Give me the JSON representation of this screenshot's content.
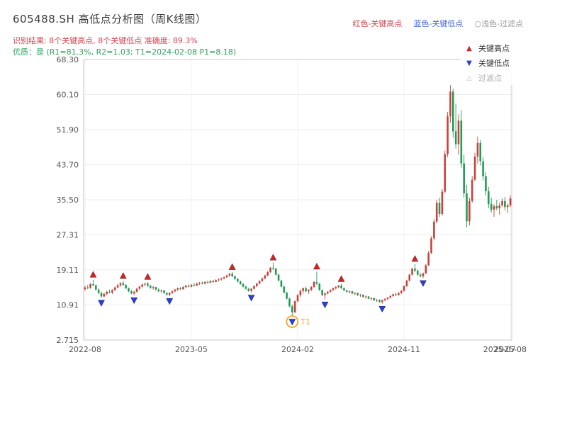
{
  "header": {
    "title": "605488.SH 高低点分析图（周K线图）",
    "color_key": {
      "high": "红色-关键高点",
      "low": "蓝色-关键低点",
      "filter": "○浅色-过滤点"
    },
    "result_line": "识别结果: 8个关键高点, 8个关键低点   准确度: 89.3%",
    "quality_line": "优质：是 (R1=81.3%, R2=1.03; T1=2024-02-08 P1=8.18)",
    "stats": {
      "key_high_count": 8,
      "key_low_count": 8,
      "accuracy": "89.3%",
      "R1": "81.3%",
      "R2": "1.03",
      "T1_date": "2024-02-08",
      "P1": "8.18"
    }
  },
  "colors": {
    "title": "#3d3d3d",
    "result_line": "#d6454f",
    "quality_line": "#2aa35c",
    "key_high_text": "#d6454f",
    "key_low_text": "#4a66d8",
    "key_filter_text": "#9a9a9a"
  },
  "legend_box": {
    "items": [
      {
        "label": "关键高点",
        "glyph": "▲",
        "color": "#c62828",
        "text_color": "#333333"
      },
      {
        "label": "关键低点",
        "glyph": "▼",
        "color": "#2b3fd4",
        "text_color": "#333333"
      },
      {
        "label": "过滤点",
        "glyph": "△",
        "color": "#bbbbbb",
        "text_color": "#aaaaaa"
      }
    ]
  },
  "chart_data": {
    "type": "candlestick",
    "title": "605488.SH 高低点分析图（周K线图）",
    "ylim": [
      2.715,
      68.3
    ],
    "y_ticks": [
      "68.30",
      "60.10",
      "51.90",
      "43.70",
      "35.50",
      "27.31",
      "19.11",
      "10.91",
      "2.715"
    ],
    "y_tick_values": [
      68.3,
      60.1,
      51.9,
      43.7,
      35.5,
      27.31,
      19.11,
      10.91,
      2.715
    ],
    "x_ticks": [
      {
        "week": 0,
        "label": "2022-08",
        "grid": true
      },
      {
        "week": 39,
        "label": "2023-05",
        "grid": true
      },
      {
        "week": 78,
        "label": "2024-02",
        "grid": true
      },
      {
        "week": 117,
        "label": "2024-11",
        "grid": true
      },
      {
        "week": 152,
        "label": "2025-07",
        "grid": false
      },
      {
        "week": 156,
        "label": "2025-08",
        "grid": true
      }
    ],
    "up_color": "#c8423a",
    "down_color": "#239a58",
    "marker_high_color": "#c62828",
    "marker_low_color": "#2b3fd4",
    "candles": [
      [
        14.6,
        15.4,
        14.2,
        15.0
      ],
      [
        15.0,
        15.6,
        14.6,
        14.9
      ],
      [
        14.9,
        16.0,
        14.7,
        15.8
      ],
      [
        15.8,
        16.8,
        15.3,
        15.5
      ],
      [
        15.5,
        15.7,
        14.3,
        14.5
      ],
      [
        14.5,
        14.8,
        13.4,
        13.7
      ],
      [
        13.7,
        14.0,
        12.6,
        12.9
      ],
      [
        12.9,
        13.8,
        12.7,
        13.5
      ],
      [
        13.5,
        14.2,
        13.2,
        14.0
      ],
      [
        14.0,
        14.5,
        13.6,
        13.8
      ],
      [
        13.8,
        14.6,
        13.5,
        14.4
      ],
      [
        14.4,
        15.2,
        14.2,
        15.0
      ],
      [
        15.0,
        15.8,
        14.8,
        15.5
      ],
      [
        15.5,
        16.2,
        15.2,
        16.0
      ],
      [
        16.0,
        16.5,
        15.4,
        15.6
      ],
      [
        15.6,
        15.8,
        14.6,
        14.8
      ],
      [
        14.8,
        15.0,
        13.9,
        14.1
      ],
      [
        14.1,
        14.4,
        13.4,
        13.6
      ],
      [
        13.6,
        14.2,
        13.2,
        14.0
      ],
      [
        14.0,
        14.9,
        13.8,
        14.7
      ],
      [
        14.7,
        15.4,
        14.5,
        15.2
      ],
      [
        15.2,
        15.9,
        15.0,
        15.7
      ],
      [
        15.7,
        16.1,
        15.3,
        15.9
      ],
      [
        15.9,
        16.3,
        15.1,
        15.4
      ],
      [
        15.4,
        15.6,
        14.7,
        14.9
      ],
      [
        14.9,
        15.3,
        14.5,
        15.1
      ],
      [
        15.1,
        15.2,
        14.3,
        14.5
      ],
      [
        14.5,
        14.8,
        13.9,
        14.1
      ],
      [
        14.1,
        14.5,
        13.7,
        14.3
      ],
      [
        14.3,
        14.4,
        13.5,
        13.7
      ],
      [
        13.7,
        13.9,
        13.1,
        13.3
      ],
      [
        13.3,
        13.9,
        13.0,
        13.7
      ],
      [
        13.7,
        14.3,
        13.5,
        14.1
      ],
      [
        14.1,
        14.7,
        13.9,
        14.5
      ],
      [
        14.5,
        15.0,
        14.2,
        14.8
      ],
      [
        14.8,
        15.1,
        14.4,
        14.6
      ],
      [
        14.6,
        15.3,
        14.5,
        15.1
      ],
      [
        15.1,
        15.6,
        14.8,
        15.4
      ],
      [
        15.4,
        15.7,
        15.0,
        15.2
      ],
      [
        15.2,
        15.8,
        15.0,
        15.6
      ],
      [
        15.6,
        16.0,
        15.2,
        15.4
      ],
      [
        15.4,
        16.1,
        15.3,
        15.9
      ],
      [
        15.9,
        16.3,
        15.6,
        16.1
      ],
      [
        16.1,
        16.4,
        15.7,
        15.9
      ],
      [
        15.9,
        16.5,
        15.7,
        16.3
      ],
      [
        16.3,
        16.6,
        15.9,
        16.1
      ],
      [
        16.1,
        16.7,
        16.0,
        16.5
      ],
      [
        16.5,
        16.8,
        16.1,
        16.3
      ],
      [
        16.3,
        16.9,
        16.2,
        16.7
      ],
      [
        16.7,
        17.1,
        16.4,
        16.9
      ],
      [
        16.9,
        17.3,
        16.6,
        17.1
      ],
      [
        17.1,
        17.6,
        16.9,
        17.4
      ],
      [
        17.4,
        18.0,
        17.2,
        17.8
      ],
      [
        17.8,
        18.4,
        17.5,
        18.2
      ],
      [
        18.2,
        18.6,
        17.4,
        17.6
      ],
      [
        17.6,
        17.8,
        16.8,
        17.0
      ],
      [
        17.0,
        17.2,
        16.2,
        16.4
      ],
      [
        16.4,
        16.6,
        15.6,
        15.8
      ],
      [
        15.8,
        16.0,
        15.0,
        15.2
      ],
      [
        15.2,
        15.4,
        14.5,
        14.7
      ],
      [
        14.7,
        14.9,
        14.0,
        14.2
      ],
      [
        14.2,
        14.9,
        13.8,
        14.7
      ],
      [
        14.7,
        15.5,
        14.5,
        15.3
      ],
      [
        15.3,
        16.1,
        15.1,
        15.9
      ],
      [
        15.9,
        16.7,
        15.7,
        16.5
      ],
      [
        16.5,
        17.3,
        16.3,
        17.1
      ],
      [
        17.1,
        18.0,
        16.9,
        17.8
      ],
      [
        17.8,
        18.8,
        17.6,
        18.6
      ],
      [
        18.6,
        19.8,
        18.4,
        19.6
      ],
      [
        19.6,
        20.8,
        19.0,
        19.4
      ],
      [
        19.4,
        19.6,
        17.8,
        18.0
      ],
      [
        18.0,
        18.2,
        16.4,
        16.6
      ],
      [
        16.6,
        16.8,
        15.0,
        15.2
      ],
      [
        15.2,
        15.4,
        13.6,
        13.8
      ],
      [
        13.8,
        14.0,
        12.2,
        12.4
      ],
      [
        12.4,
        12.6,
        10.4,
        10.6
      ],
      [
        10.6,
        11.0,
        8.18,
        9.2
      ],
      [
        9.2,
        12.0,
        9.0,
        11.8
      ],
      [
        11.8,
        13.5,
        11.5,
        13.2
      ],
      [
        13.2,
        14.5,
        12.8,
        14.2
      ],
      [
        14.2,
        15.0,
        13.6,
        14.8
      ],
      [
        14.8,
        15.2,
        13.9,
        14.1
      ],
      [
        14.1,
        14.6,
        13.5,
        14.4
      ],
      [
        14.4,
        15.3,
        14.2,
        15.1
      ],
      [
        15.1,
        16.5,
        14.9,
        16.3
      ],
      [
        16.3,
        18.7,
        15.5,
        15.9
      ],
      [
        15.9,
        16.0,
        14.2,
        14.4
      ],
      [
        14.4,
        14.5,
        13.0,
        13.2
      ],
      [
        13.2,
        13.8,
        12.2,
        13.6
      ],
      [
        13.6,
        14.2,
        13.4,
        14.0
      ],
      [
        14.0,
        14.6,
        13.8,
        14.4
      ],
      [
        14.4,
        15.0,
        14.2,
        14.8
      ],
      [
        14.8,
        15.3,
        14.5,
        15.1
      ],
      [
        15.1,
        15.6,
        14.8,
        15.4
      ],
      [
        15.4,
        15.8,
        14.6,
        14.8
      ],
      [
        14.8,
        15.0,
        14.1,
        14.3
      ],
      [
        14.3,
        14.5,
        13.8,
        14.0
      ],
      [
        14.0,
        14.3,
        13.6,
        14.1
      ],
      [
        14.1,
        14.2,
        13.4,
        13.6
      ],
      [
        13.6,
        13.9,
        13.2,
        13.7
      ],
      [
        13.7,
        13.8,
        13.0,
        13.2
      ],
      [
        13.2,
        13.5,
        12.8,
        13.3
      ],
      [
        13.3,
        13.4,
        12.6,
        12.8
      ],
      [
        12.8,
        13.1,
        12.4,
        12.9
      ],
      [
        12.9,
        13.0,
        12.2,
        12.4
      ],
      [
        12.4,
        12.7,
        12.0,
        12.5
      ],
      [
        12.5,
        12.6,
        11.8,
        12.0
      ],
      [
        12.0,
        12.3,
        11.6,
        12.1
      ],
      [
        12.1,
        12.2,
        11.4,
        11.6
      ],
      [
        11.6,
        12.2,
        11.2,
        12.0
      ],
      [
        12.0,
        12.5,
        11.8,
        12.3
      ],
      [
        12.3,
        12.8,
        12.1,
        12.6
      ],
      [
        12.6,
        13.2,
        12.4,
        13.0
      ],
      [
        13.0,
        13.6,
        12.8,
        13.4
      ],
      [
        13.4,
        13.8,
        13.0,
        13.2
      ],
      [
        13.2,
        13.9,
        13.1,
        13.7
      ],
      [
        13.7,
        14.4,
        13.5,
        14.2
      ],
      [
        14.2,
        15.5,
        14.0,
        15.3
      ],
      [
        15.3,
        16.8,
        15.1,
        16.6
      ],
      [
        16.6,
        18.2,
        16.4,
        18.0
      ],
      [
        18.0,
        19.6,
        17.8,
        19.4
      ],
      [
        19.4,
        20.5,
        18.6,
        18.9
      ],
      [
        18.9,
        19.2,
        17.8,
        18.0
      ],
      [
        18.0,
        18.4,
        17.4,
        17.6
      ],
      [
        17.6,
        18.5,
        17.2,
        18.3
      ],
      [
        18.3,
        20.5,
        18.1,
        20.2
      ],
      [
        20.2,
        23.5,
        20.0,
        23.1
      ],
      [
        23.1,
        27.0,
        22.8,
        26.5
      ],
      [
        26.5,
        31.0,
        26.0,
        30.4
      ],
      [
        30.4,
        35.5,
        30.0,
        34.8
      ],
      [
        34.8,
        36.0,
        31.5,
        32.2
      ],
      [
        32.2,
        38.0,
        31.8,
        37.4
      ],
      [
        37.4,
        47.0,
        37.0,
        46.2
      ],
      [
        46.2,
        56.0,
        45.5,
        55.0
      ],
      [
        55.0,
        62.3,
        53.5,
        60.8
      ],
      [
        60.8,
        61.5,
        50.0,
        51.5
      ],
      [
        51.5,
        58.0,
        47.5,
        48.5
      ],
      [
        48.5,
        55.5,
        46.0,
        54.0
      ],
      [
        54.0,
        56.5,
        43.0,
        44.0
      ],
      [
        44.0,
        46.0,
        36.0,
        37.0
      ],
      [
        37.0,
        39.0,
        29.0,
        30.5
      ],
      [
        30.5,
        36.0,
        29.5,
        35.2
      ],
      [
        35.2,
        41.0,
        34.8,
        40.2
      ],
      [
        40.2,
        46.5,
        39.8,
        45.6
      ],
      [
        45.6,
        50.3,
        44.0,
        48.8
      ],
      [
        48.8,
        49.5,
        43.5,
        44.5
      ],
      [
        44.5,
        45.5,
        40.0,
        41.0
      ],
      [
        41.0,
        42.0,
        36.5,
        37.5
      ],
      [
        37.5,
        38.5,
        33.5,
        34.5
      ],
      [
        34.5,
        36.0,
        32.5,
        33.2
      ],
      [
        33.2,
        34.5,
        31.5,
        34.0
      ],
      [
        34.0,
        35.5,
        33.0,
        33.5
      ],
      [
        33.5,
        34.8,
        32.0,
        34.2
      ],
      [
        34.2,
        35.8,
        33.8,
        35.2
      ],
      [
        35.2,
        36.2,
        33.0,
        33.8
      ],
      [
        33.8,
        34.6,
        32.4,
        34.2
      ],
      [
        34.2,
        36.5,
        33.8,
        35.8
      ]
    ],
    "key_highs": [
      {
        "week": 3,
        "price": 16.8
      },
      {
        "week": 14,
        "price": 16.5
      },
      {
        "week": 23,
        "price": 16.3
      },
      {
        "week": 54,
        "price": 18.6
      },
      {
        "week": 69,
        "price": 20.8
      },
      {
        "week": 85,
        "price": 18.7
      },
      {
        "week": 94,
        "price": 15.8
      },
      {
        "week": 121,
        "price": 20.5
      }
    ],
    "key_lows": [
      {
        "week": 6,
        "price": 12.6
      },
      {
        "week": 18,
        "price": 13.2
      },
      {
        "week": 31,
        "price": 13.0
      },
      {
        "week": 61,
        "price": 13.8
      },
      {
        "week": 76,
        "price": 8.18
      },
      {
        "week": 88,
        "price": 12.2
      },
      {
        "week": 109,
        "price": 11.2
      },
      {
        "week": 124,
        "price": 17.2
      }
    ],
    "t1": {
      "week": 76,
      "price": 8.18,
      "label": "T1",
      "color": "#f5a623"
    }
  }
}
